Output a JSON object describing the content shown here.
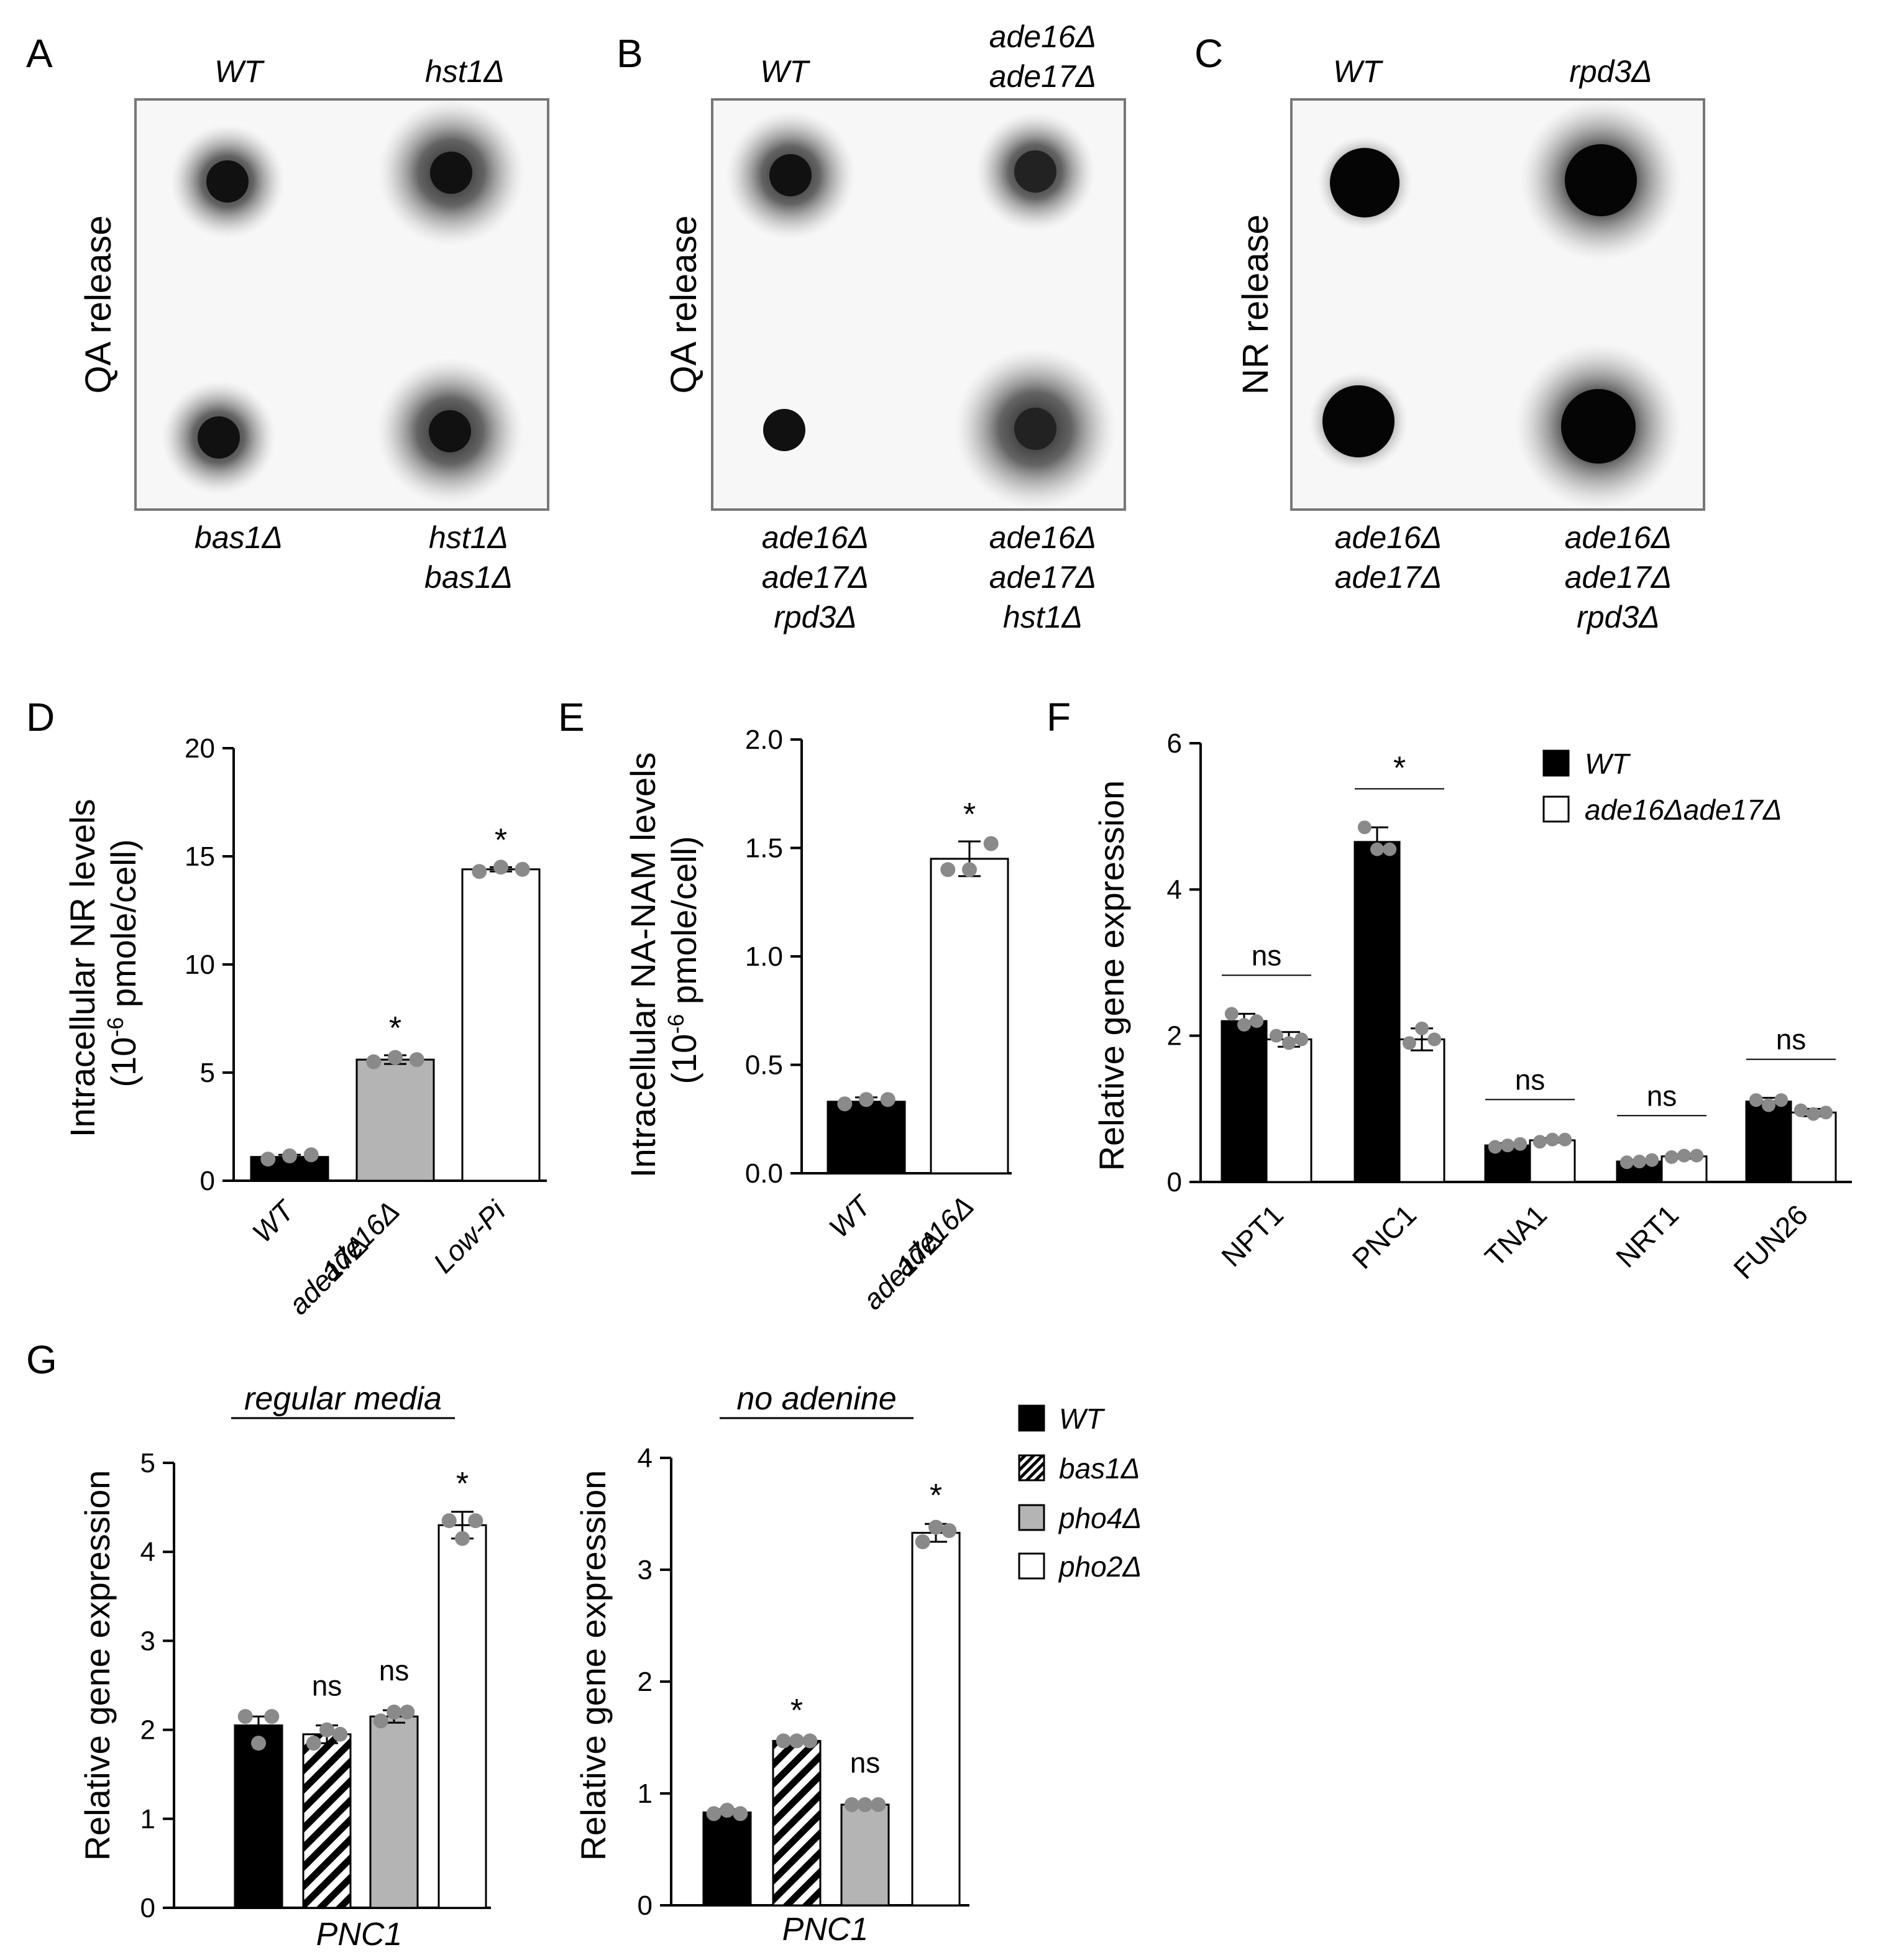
{
  "colors": {
    "black": "#000000",
    "gray": "#b4b4b4",
    "white": "#ffffff",
    "dot": "#8a8a8a"
  },
  "panels": {
    "A": {
      "letter": "A",
      "ylabel": "QA release",
      "strains": [
        "WT",
        "hst1Δ",
        "bas1Δ",
        "hst1Δ",
        "bas1Δ"
      ]
    },
    "B": {
      "letter": "B",
      "ylabel": "QA release",
      "top": [
        "WT",
        "ade16Δ",
        "ade17Δ"
      ],
      "bottom": [
        "ade16Δ",
        "ade17Δ",
        "rpd3Δ",
        "ade16Δ",
        "ade17Δ",
        "hst1Δ"
      ]
    },
    "C": {
      "letter": "C",
      "ylabel": "NR release",
      "top": [
        "WT",
        "rpd3Δ"
      ],
      "bottom": [
        "ade16Δ",
        "ade17Δ",
        "ade16Δ",
        "ade17Δ",
        "rpd3Δ"
      ]
    },
    "D": {
      "letter": "D"
    },
    "E": {
      "letter": "E"
    },
    "F": {
      "letter": "F"
    },
    "G": {
      "letter": "G"
    }
  },
  "chart_data": [
    {
      "id": "D",
      "type": "bar",
      "ylabel": [
        "Intracellular NR levels",
        "(10",
        "-6",
        " pmole/cell)"
      ],
      "categories": [
        [
          "WT"
        ],
        [
          "ade16Δ",
          "ade17Δ"
        ],
        [
          "Low-Pi"
        ]
      ],
      "values": [
        1.1,
        5.6,
        14.4
      ],
      "errors": [
        0.1,
        0.2,
        0.1
      ],
      "points": [
        [
          1.0,
          1.15,
          1.2
        ],
        [
          5.5,
          5.7,
          5.6
        ],
        [
          14.3,
          14.5,
          14.4
        ]
      ],
      "fills": [
        "black",
        "gray",
        "white"
      ],
      "significance": [
        "",
        "*",
        "*"
      ],
      "ylim": [
        0,
        20
      ],
      "yticks": [
        "0",
        "5",
        "10",
        "15",
        "20"
      ],
      "ytick_values": [
        0,
        5,
        10,
        15,
        20
      ]
    },
    {
      "id": "E",
      "type": "bar",
      "ylabel": [
        "Intracellular NA-NAM levels",
        "(10",
        "-6",
        " pmole/cell)"
      ],
      "categories": [
        [
          "WT"
        ],
        [
          "ade16Δ",
          "ade17Δ"
        ]
      ],
      "values": [
        0.33,
        1.45
      ],
      "errors": [
        0.02,
        0.08
      ],
      "points": [
        [
          0.32,
          0.34,
          0.34
        ],
        [
          1.4,
          1.4,
          1.52
        ]
      ],
      "fills": [
        "black",
        "white"
      ],
      "significance": [
        "",
        "*"
      ],
      "ylim": [
        0,
        2.0
      ],
      "yticks": [
        "0.0",
        "0.5",
        "1.0",
        "1.5",
        "2.0"
      ],
      "ytick_values": [
        0,
        0.5,
        1.0,
        1.5,
        2.0
      ]
    },
    {
      "id": "F",
      "type": "bar",
      "ylabel": "Relative gene expression",
      "categories": [
        "NPT1",
        "PNC1",
        "TNA1",
        "NRT1",
        "FUN26"
      ],
      "series": [
        {
          "name": "WT",
          "values": [
            2.2,
            4.65,
            0.5,
            0.28,
            1.1
          ],
          "errors": [
            0.1,
            0.2,
            0.03,
            0.02,
            0.05
          ],
          "points": [
            [
              2.3,
              2.15,
              2.2
            ],
            [
              4.85,
              4.55,
              4.55
            ],
            [
              0.48,
              0.5,
              0.52
            ],
            [
              0.27,
              0.28,
              0.3
            ],
            [
              1.12,
              1.05,
              1.12
            ]
          ],
          "fill": "black"
        },
        {
          "name": "ade16Δade17Δ",
          "values": [
            1.95,
            1.95,
            0.57,
            0.35,
            0.95
          ],
          "errors": [
            0.1,
            0.15,
            0.03,
            0.03,
            0.05
          ],
          "points": [
            [
              2.0,
              1.9,
              1.95
            ],
            [
              1.9,
              2.1,
              1.95
            ],
            [
              0.55,
              0.58,
              0.58
            ],
            [
              0.34,
              0.36,
              0.36
            ],
            [
              0.98,
              0.93,
              0.95
            ]
          ],
          "fill": "white"
        }
      ],
      "significance": [
        "ns",
        "*",
        "ns",
        "ns",
        "ns"
      ],
      "ylim": [
        0,
        6
      ],
      "yticks": [
        "0",
        "2",
        "4",
        "6"
      ],
      "ytick_values": [
        0,
        2,
        4,
        6
      ]
    },
    {
      "id": "G1",
      "type": "bar",
      "title": "regular media",
      "ylabel": "Relative gene expression",
      "xlabel": "PNC1",
      "values": [
        2.05,
        1.95,
        2.15,
        4.3
      ],
      "errors": [
        0.1,
        0.1,
        0.07,
        0.15
      ],
      "points": [
        [
          2.15,
          1.85,
          2.15
        ],
        [
          1.85,
          2.0,
          1.95
        ],
        [
          2.1,
          2.2,
          2.2
        ],
        [
          4.35,
          4.15,
          4.35
        ]
      ],
      "fills": [
        "black",
        "hatch",
        "gray",
        "white"
      ],
      "significance": [
        "",
        "ns",
        "ns",
        "*"
      ],
      "ylim": [
        0,
        5
      ],
      "yticks": [
        "0",
        "1",
        "2",
        "3",
        "4",
        "5"
      ],
      "ytick_values": [
        0,
        1,
        2,
        3,
        4,
        5
      ]
    },
    {
      "id": "G2",
      "type": "bar",
      "title": "no adenine",
      "ylabel": "Relative gene expression",
      "xlabel": "PNC1",
      "values": [
        0.83,
        1.47,
        0.9,
        3.33
      ],
      "errors": [
        0.03,
        0.02,
        0.02,
        0.08
      ],
      "points": [
        [
          0.82,
          0.85,
          0.82
        ],
        [
          1.47,
          1.47,
          1.47
        ],
        [
          0.9,
          0.9,
          0.9
        ],
        [
          3.25,
          3.38,
          3.35
        ]
      ],
      "fills": [
        "black",
        "hatch",
        "gray",
        "white"
      ],
      "significance": [
        "",
        "*",
        "ns",
        "*"
      ],
      "ylim": [
        0,
        4
      ],
      "yticks": [
        "0",
        "1",
        "2",
        "3",
        "4"
      ],
      "ytick_values": [
        0,
        1,
        2,
        3,
        4
      ]
    }
  ],
  "legend_F": [
    "WT",
    "ade16Δade17Δ"
  ],
  "legend_G": [
    {
      "name": "WT",
      "fill": "black"
    },
    {
      "name": "bas1Δ",
      "fill": "hatch"
    },
    {
      "name": "pho4Δ",
      "fill": "gray"
    },
    {
      "name": "pho2Δ",
      "fill": "white"
    }
  ]
}
